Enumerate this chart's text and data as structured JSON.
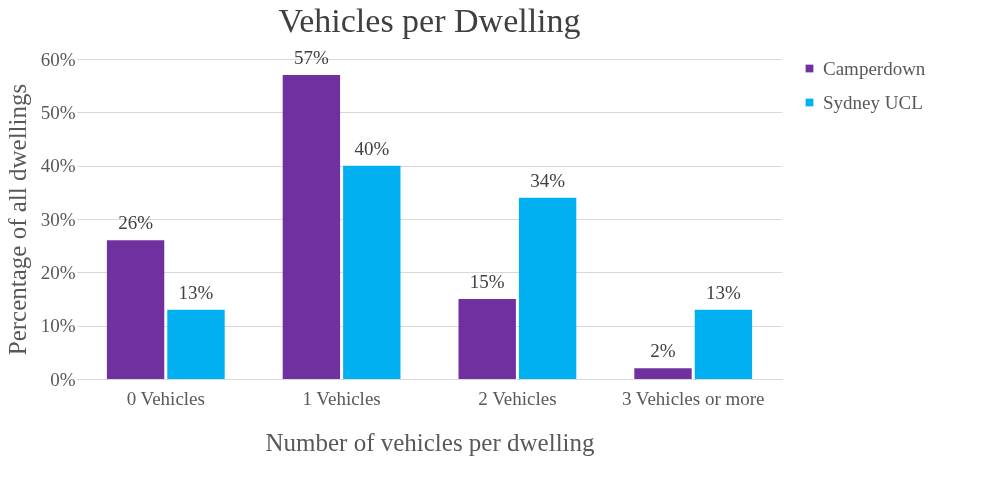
{
  "chart_data": {
    "type": "bar",
    "title": "Vehicles per Dwelling",
    "xlabel": "Number of vehicles per dwelling",
    "ylabel": "Percentage of all dwellings",
    "categories": [
      "0 Vehicles",
      "1 Vehicles",
      "2 Vehicles",
      "3 Vehicles or more"
    ],
    "series": [
      {
        "name": "Camperdown",
        "color": "#7030a0",
        "values": [
          26,
          57,
          15,
          2
        ],
        "value_labels": [
          "26%",
          "57%",
          "15%",
          "2%"
        ]
      },
      {
        "name": "Sydney UCL",
        "color": "#00b0f0",
        "values": [
          13,
          40,
          34,
          13
        ],
        "value_labels": [
          "13%",
          "40%",
          "34%",
          "13%"
        ]
      }
    ],
    "ylim": [
      0,
      60
    ],
    "yticks": [
      {
        "value": 0,
        "label": "0%"
      },
      {
        "value": 10,
        "label": "10%"
      },
      {
        "value": 20,
        "label": "20%"
      },
      {
        "value": 30,
        "label": "30%"
      },
      {
        "value": 40,
        "label": "40%"
      },
      {
        "value": 50,
        "label": "50%"
      },
      {
        "value": 60,
        "label": "60%"
      }
    ],
    "grid": "y",
    "legend": "right"
  }
}
